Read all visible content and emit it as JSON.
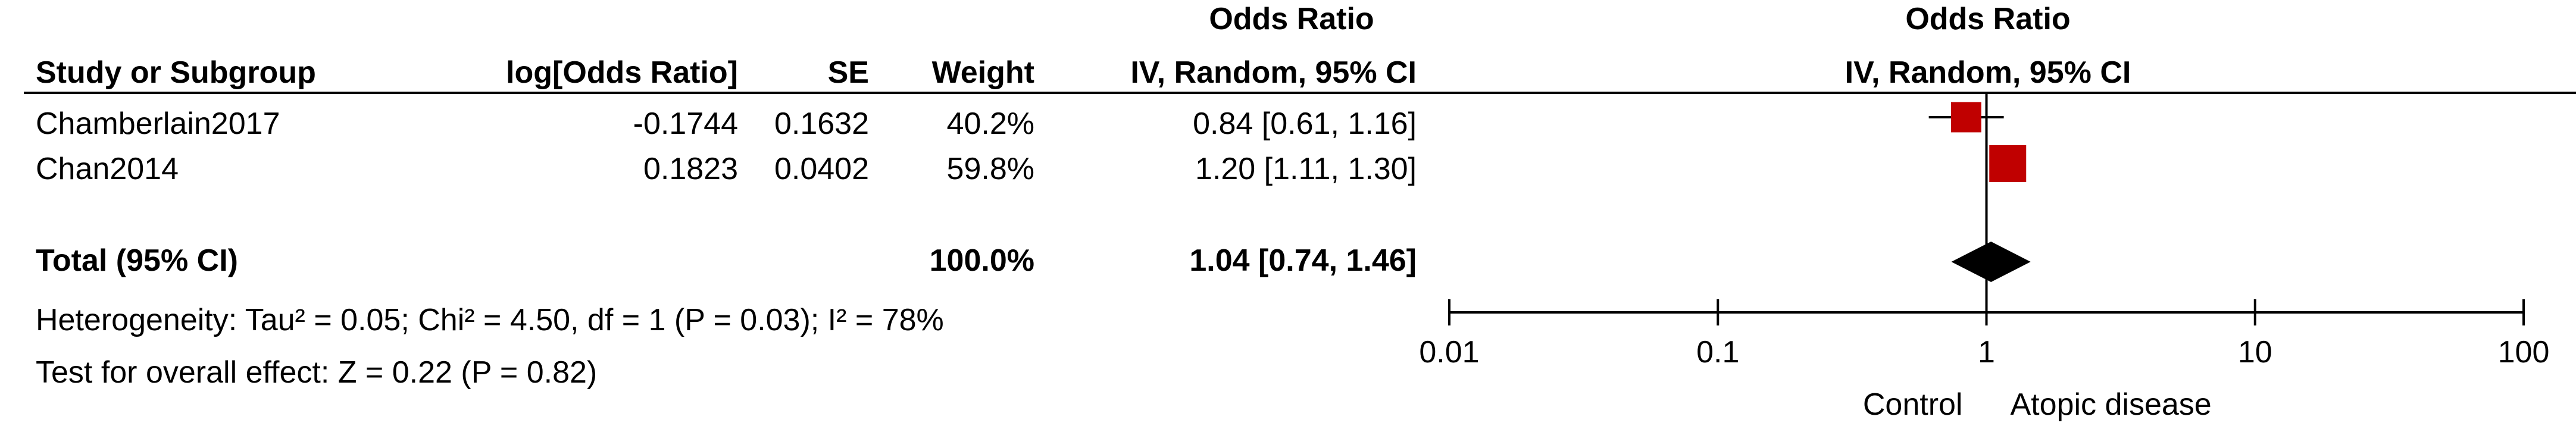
{
  "table": {
    "group_header": "Odds Ratio",
    "columns": {
      "study": "Study or Subgroup",
      "log_or": "log[Odds Ratio]",
      "se": "SE",
      "weight": "Weight",
      "or_ci": "IV, Random, 95% CI"
    },
    "rows": [
      {
        "study": "Chamberlain2017",
        "log_or": "-0.1744",
        "se": "0.1632",
        "weight": "40.2%",
        "or_ci": "0.84 [0.61, 1.16]"
      },
      {
        "study": "Chan2014",
        "log_or": "0.1823",
        "se": "0.0402",
        "weight": "59.8%",
        "or_ci": "1.20 [1.11, 1.30]"
      }
    ],
    "total": {
      "label": "Total (95% CI)",
      "weight": "100.0%",
      "or_ci": "1.04 [0.74, 1.46]"
    },
    "heterogeneity": "Heterogeneity: Tau² = 0.05; Chi² = 4.50, df = 1 (P = 0.03); I² = 78%",
    "overall_effect": "Test for overall effect: Z = 0.22 (P = 0.82)"
  },
  "chart_data": {
    "type": "forest",
    "title": "Odds Ratio",
    "subtitle": "IV, Random, 95% CI",
    "x_scale": "log",
    "xlim": [
      0.01,
      100
    ],
    "ticks": [
      0.01,
      0.1,
      1,
      10,
      100
    ],
    "tick_labels": [
      "0.01",
      "0.1",
      "1",
      "10",
      "100"
    ],
    "favours_left": "Control",
    "favours_right": "Atopic disease",
    "studies": [
      {
        "name": "Chamberlain2017",
        "or": 0.84,
        "lo": 0.61,
        "hi": 1.16,
        "weight": 40.2
      },
      {
        "name": "Chan2014",
        "or": 1.2,
        "lo": 1.11,
        "hi": 1.3,
        "weight": 59.8
      }
    ],
    "pooled": {
      "or": 1.04,
      "lo": 0.74,
      "hi": 1.46
    },
    "colors": {
      "study_marker": "#c00000",
      "pooled_marker": "#000000",
      "lines": "#000000"
    }
  }
}
